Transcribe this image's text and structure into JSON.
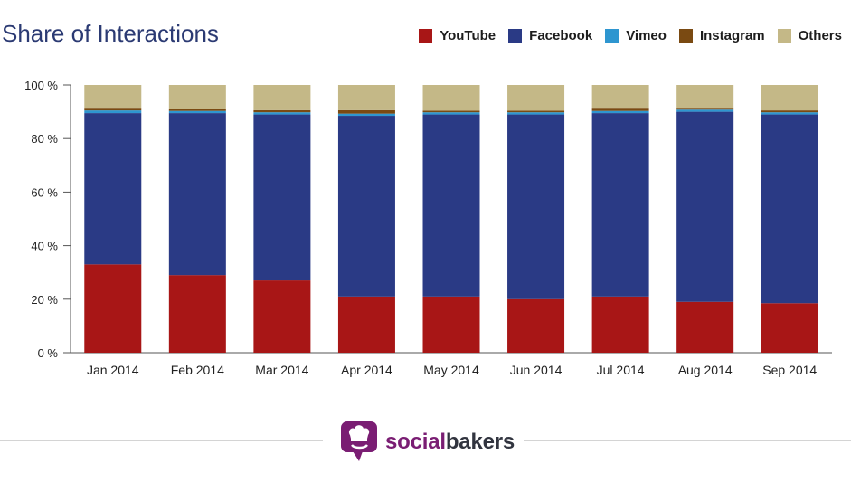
{
  "title": "Share of Interactions",
  "legend": [
    {
      "label": "YouTube",
      "color": "#a81616",
      "icon": "square-swatch"
    },
    {
      "label": "Facebook",
      "color": "#2a3a85",
      "icon": "square-swatch"
    },
    {
      "label": "Vimeo",
      "color": "#2e96d0",
      "icon": "square-swatch"
    },
    {
      "label": "Instagram",
      "color": "#7a4a12",
      "icon": "square-swatch"
    },
    {
      "label": "Others",
      "color": "#c4b887",
      "icon": "square-swatch"
    }
  ],
  "brand": {
    "part1": "social",
    "part2": "bakers",
    "logo_icon": "chef-speech-bubble-icon",
    "colors": {
      "primary": "#7a1d73",
      "secondary": "#31343f"
    }
  },
  "chart_data": {
    "type": "bar",
    "stacked": true,
    "title": "Share of Interactions",
    "categories": [
      "Jan 2014",
      "Feb 2014",
      "Mar 2014",
      "Apr 2014",
      "May 2014",
      "Jun 2014",
      "Jul 2014",
      "Aug 2014",
      "Sep 2014"
    ],
    "series": [
      {
        "name": "YouTube",
        "color": "#a81616",
        "values": [
          33,
          29,
          27,
          21,
          21,
          20,
          21,
          19,
          18.5
        ]
      },
      {
        "name": "Facebook",
        "color": "#2a3a85",
        "values": [
          56.5,
          60.5,
          62,
          67.5,
          68,
          69,
          68.5,
          71,
          70.5
        ]
      },
      {
        "name": "Vimeo",
        "color": "#2e96d0",
        "values": [
          1,
          0.8,
          0.8,
          0.8,
          0.8,
          0.8,
          0.8,
          0.8,
          0.8
        ]
      },
      {
        "name": "Instagram",
        "color": "#7a4a12",
        "values": [
          1,
          0.9,
          0.8,
          1.3,
          0.6,
          0.6,
          1.2,
          0.7,
          0.7
        ]
      },
      {
        "name": "Others",
        "color": "#c4b887",
        "values": [
          8.5,
          8.8,
          9.4,
          9.4,
          9.6,
          9.6,
          8.5,
          8.5,
          9.5
        ]
      }
    ],
    "yticks": [
      "0 %",
      "20 %",
      "40 %",
      "60 %",
      "80 %",
      "100 %"
    ],
    "ylim": [
      0,
      100
    ],
    "grid": false,
    "legend_position": "top-right",
    "xlabel": "",
    "ylabel": ""
  }
}
